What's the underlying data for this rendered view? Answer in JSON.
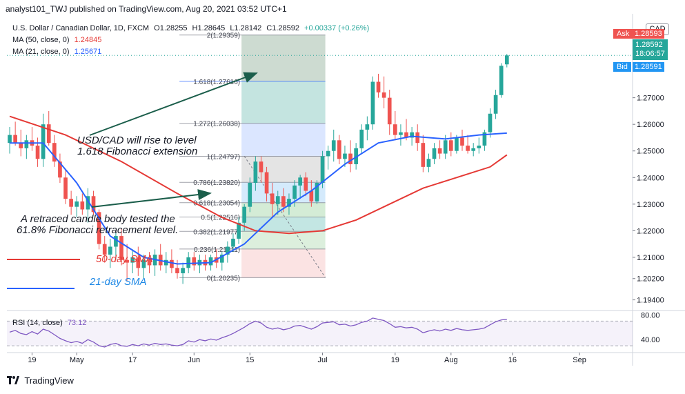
{
  "publisher_line": "analyst101_TWJ published on TradingView.com, Aug 20, 2021 03:52 UTC+1",
  "legend": {
    "symbol": "U.S. Dollar / Canadian Dollar, 1D, FXCM",
    "o": "O1.28255",
    "h": "H1.28645",
    "l": "L1.28142",
    "c": "C1.28592",
    "chg": "+0.00337 (+0.26%)",
    "ma50_label": "MA (50, close, 0)",
    "ma50_value": "1.24845",
    "ma21_label": "MA (21, close, 0)",
    "ma21_value": "1.25671",
    "rsi_label": "RSI (14, close)",
    "rsi_value": "73.12"
  },
  "currency_badge": "CAD",
  "ask": {
    "label": "Ask",
    "value": "1.28593"
  },
  "last": {
    "value": "1.28592",
    "countdown": "18:06:57"
  },
  "bid": {
    "label": "Bid",
    "value": "1.28591"
  },
  "footer_brand": "TradingView",
  "colors": {
    "up": "#26a69a",
    "down": "#ef5350",
    "ma50": "#e53935",
    "ma21": "#2962ff",
    "rsi": "#7e57c2",
    "arrow": "#1b5e4b",
    "fib_line": "#2962ff",
    "ask": "#ef5350",
    "bid": "#2196f3"
  },
  "chart_data": {
    "type": "candlestick",
    "ylim": [
      1.19,
      1.3
    ],
    "y_ticks": [
      1.194,
      1.202,
      1.21,
      1.22,
      1.23,
      1.24,
      1.25,
      1.26,
      1.27
    ],
    "y_tick_labels": [
      "1.19400",
      "1.20200",
      "1.21000",
      "1.22000",
      "1.23000",
      "1.24000",
      "1.25000",
      "1.26000",
      "1.27000"
    ],
    "x_ticks": [
      {
        "label": "19",
        "bar": 4
      },
      {
        "label": "May",
        "bar": 12
      },
      {
        "label": "17",
        "bar": 22
      },
      {
        "label": "Jun",
        "bar": 33
      },
      {
        "label": "15",
        "bar": 43
      },
      {
        "label": "Jul",
        "bar": 56
      },
      {
        "label": "19",
        "bar": 69
      },
      {
        "label": "Aug",
        "bar": 79
      },
      {
        "label": "16",
        "bar": 90
      },
      {
        "label": "Sep",
        "bar": 102
      }
    ],
    "n_slots": 112,
    "candles": [
      {
        "o": 1.253,
        "h": 1.259,
        "l": 1.249,
        "c": 1.256
      },
      {
        "o": 1.256,
        "h": 1.261,
        "l": 1.252,
        "c": 1.253
      },
      {
        "o": 1.253,
        "h": 1.258,
        "l": 1.248,
        "c": 1.251
      },
      {
        "o": 1.251,
        "h": 1.256,
        "l": 1.247,
        "c": 1.254
      },
      {
        "o": 1.254,
        "h": 1.259,
        "l": 1.25,
        "c": 1.252
      },
      {
        "o": 1.252,
        "h": 1.255,
        "l": 1.244,
        "c": 1.247
      },
      {
        "o": 1.247,
        "h": 1.264,
        "l": 1.244,
        "c": 1.26
      },
      {
        "o": 1.26,
        "h": 1.265,
        "l": 1.252,
        "c": 1.253
      },
      {
        "o": 1.253,
        "h": 1.256,
        "l": 1.244,
        "c": 1.246
      },
      {
        "o": 1.246,
        "h": 1.249,
        "l": 1.238,
        "c": 1.24
      },
      {
        "o": 1.24,
        "h": 1.243,
        "l": 1.23,
        "c": 1.232
      },
      {
        "o": 1.232,
        "h": 1.235,
        "l": 1.226,
        "c": 1.229
      },
      {
        "o": 1.229,
        "h": 1.233,
        "l": 1.225,
        "c": 1.231
      },
      {
        "o": 1.231,
        "h": 1.234,
        "l": 1.226,
        "c": 1.228
      },
      {
        "o": 1.228,
        "h": 1.236,
        "l": 1.223,
        "c": 1.233
      },
      {
        "o": 1.233,
        "h": 1.235,
        "l": 1.226,
        "c": 1.227
      },
      {
        "o": 1.227,
        "h": 1.228,
        "l": 1.213,
        "c": 1.215
      },
      {
        "o": 1.215,
        "h": 1.218,
        "l": 1.208,
        "c": 1.211
      },
      {
        "o": 1.211,
        "h": 1.217,
        "l": 1.206,
        "c": 1.214
      },
      {
        "o": 1.214,
        "h": 1.22,
        "l": 1.209,
        "c": 1.218
      },
      {
        "o": 1.218,
        "h": 1.221,
        "l": 1.207,
        "c": 1.209
      },
      {
        "o": 1.209,
        "h": 1.215,
        "l": 1.201,
        "c": 1.208
      },
      {
        "o": 1.208,
        "h": 1.213,
        "l": 1.204,
        "c": 1.21
      },
      {
        "o": 1.21,
        "h": 1.214,
        "l": 1.203,
        "c": 1.206
      },
      {
        "o": 1.206,
        "h": 1.211,
        "l": 1.202,
        "c": 1.209
      },
      {
        "o": 1.209,
        "h": 1.212,
        "l": 1.204,
        "c": 1.207
      },
      {
        "o": 1.207,
        "h": 1.213,
        "l": 1.203,
        "c": 1.211
      },
      {
        "o": 1.211,
        "h": 1.215,
        "l": 1.205,
        "c": 1.207
      },
      {
        "o": 1.207,
        "h": 1.212,
        "l": 1.204,
        "c": 1.209
      },
      {
        "o": 1.209,
        "h": 1.213,
        "l": 1.204,
        "c": 1.206
      },
      {
        "o": 1.206,
        "h": 1.209,
        "l": 1.202,
        "c": 1.204
      },
      {
        "o": 1.204,
        "h": 1.208,
        "l": 1.2,
        "c": 1.206
      },
      {
        "o": 1.206,
        "h": 1.212,
        "l": 1.204,
        "c": 1.21
      },
      {
        "o": 1.21,
        "h": 1.212,
        "l": 1.205,
        "c": 1.207
      },
      {
        "o": 1.207,
        "h": 1.211,
        "l": 1.204,
        "c": 1.209
      },
      {
        "o": 1.209,
        "h": 1.211,
        "l": 1.205,
        "c": 1.207
      },
      {
        "o": 1.207,
        "h": 1.211,
        "l": 1.205,
        "c": 1.21
      },
      {
        "o": 1.21,
        "h": 1.213,
        "l": 1.206,
        "c": 1.208
      },
      {
        "o": 1.208,
        "h": 1.212,
        "l": 1.205,
        "c": 1.211
      },
      {
        "o": 1.211,
        "h": 1.216,
        "l": 1.208,
        "c": 1.214
      },
      {
        "o": 1.214,
        "h": 1.219,
        "l": 1.212,
        "c": 1.217
      },
      {
        "o": 1.217,
        "h": 1.225,
        "l": 1.215,
        "c": 1.223
      },
      {
        "o": 1.223,
        "h": 1.23,
        "l": 1.22,
        "c": 1.229
      },
      {
        "o": 1.229,
        "h": 1.24,
        "l": 1.227,
        "c": 1.238
      },
      {
        "o": 1.238,
        "h": 1.248,
        "l": 1.235,
        "c": 1.246
      },
      {
        "o": 1.246,
        "h": 1.248,
        "l": 1.238,
        "c": 1.242
      },
      {
        "o": 1.242,
        "h": 1.244,
        "l": 1.231,
        "c": 1.234
      },
      {
        "o": 1.234,
        "h": 1.238,
        "l": 1.225,
        "c": 1.23
      },
      {
        "o": 1.23,
        "h": 1.235,
        "l": 1.226,
        "c": 1.233
      },
      {
        "o": 1.233,
        "h": 1.236,
        "l": 1.227,
        "c": 1.229
      },
      {
        "o": 1.229,
        "h": 1.234,
        "l": 1.226,
        "c": 1.232
      },
      {
        "o": 1.232,
        "h": 1.239,
        "l": 1.229,
        "c": 1.237
      },
      {
        "o": 1.237,
        "h": 1.241,
        "l": 1.232,
        "c": 1.24
      },
      {
        "o": 1.24,
        "h": 1.242,
        "l": 1.233,
        "c": 1.235
      },
      {
        "o": 1.235,
        "h": 1.239,
        "l": 1.229,
        "c": 1.231
      },
      {
        "o": 1.231,
        "h": 1.239,
        "l": 1.23,
        "c": 1.238
      },
      {
        "o": 1.238,
        "h": 1.25,
        "l": 1.236,
        "c": 1.248
      },
      {
        "o": 1.248,
        "h": 1.252,
        "l": 1.243,
        "c": 1.25
      },
      {
        "o": 1.25,
        "h": 1.258,
        "l": 1.246,
        "c": 1.254
      },
      {
        "o": 1.254,
        "h": 1.256,
        "l": 1.245,
        "c": 1.247
      },
      {
        "o": 1.247,
        "h": 1.252,
        "l": 1.244,
        "c": 1.249
      },
      {
        "o": 1.249,
        "h": 1.254,
        "l": 1.242,
        "c": 1.245
      },
      {
        "o": 1.245,
        "h": 1.253,
        "l": 1.243,
        "c": 1.251
      },
      {
        "o": 1.251,
        "h": 1.26,
        "l": 1.249,
        "c": 1.258
      },
      {
        "o": 1.258,
        "h": 1.263,
        "l": 1.254,
        "c": 1.26
      },
      {
        "o": 1.26,
        "h": 1.278,
        "l": 1.258,
        "c": 1.276
      },
      {
        "o": 1.276,
        "h": 1.279,
        "l": 1.27,
        "c": 1.272
      },
      {
        "o": 1.272,
        "h": 1.278,
        "l": 1.266,
        "c": 1.27
      },
      {
        "o": 1.27,
        "h": 1.273,
        "l": 1.256,
        "c": 1.26
      },
      {
        "o": 1.26,
        "h": 1.265,
        "l": 1.254,
        "c": 1.256
      },
      {
        "o": 1.256,
        "h": 1.26,
        "l": 1.252,
        "c": 1.257
      },
      {
        "o": 1.257,
        "h": 1.262,
        "l": 1.254,
        "c": 1.255
      },
      {
        "o": 1.255,
        "h": 1.259,
        "l": 1.252,
        "c": 1.257
      },
      {
        "o": 1.257,
        "h": 1.26,
        "l": 1.25,
        "c": 1.253
      },
      {
        "o": 1.253,
        "h": 1.256,
        "l": 1.242,
        "c": 1.244
      },
      {
        "o": 1.244,
        "h": 1.249,
        "l": 1.242,
        "c": 1.247
      },
      {
        "o": 1.247,
        "h": 1.253,
        "l": 1.245,
        "c": 1.251
      },
      {
        "o": 1.251,
        "h": 1.254,
        "l": 1.247,
        "c": 1.249
      },
      {
        "o": 1.249,
        "h": 1.256,
        "l": 1.247,
        "c": 1.254
      },
      {
        "o": 1.254,
        "h": 1.257,
        "l": 1.248,
        "c": 1.25
      },
      {
        "o": 1.25,
        "h": 1.256,
        "l": 1.249,
        "c": 1.255
      },
      {
        "o": 1.255,
        "h": 1.258,
        "l": 1.25,
        "c": 1.252
      },
      {
        "o": 1.252,
        "h": 1.256,
        "l": 1.249,
        "c": 1.25
      },
      {
        "o": 1.25,
        "h": 1.253,
        "l": 1.248,
        "c": 1.251
      },
      {
        "o": 1.251,
        "h": 1.255,
        "l": 1.249,
        "c": 1.252
      },
      {
        "o": 1.252,
        "h": 1.258,
        "l": 1.25,
        "c": 1.257
      },
      {
        "o": 1.257,
        "h": 1.266,
        "l": 1.255,
        "c": 1.264
      },
      {
        "o": 1.264,
        "h": 1.273,
        "l": 1.262,
        "c": 1.271
      },
      {
        "o": 1.271,
        "h": 1.283,
        "l": 1.27,
        "c": 1.282
      },
      {
        "o": 1.28255,
        "h": 1.28645,
        "l": 1.28142,
        "c": 1.28592
      }
    ],
    "ma50": [
      [
        0,
        1.263
      ],
      [
        10,
        1.256
      ],
      [
        20,
        1.246
      ],
      [
        30,
        1.234
      ],
      [
        38,
        1.225
      ],
      [
        44,
        1.22
      ],
      [
        50,
        1.219
      ],
      [
        56,
        1.22
      ],
      [
        62,
        1.224
      ],
      [
        68,
        1.23
      ],
      [
        74,
        1.236
      ],
      [
        80,
        1.24
      ],
      [
        86,
        1.244
      ],
      [
        89,
        1.2485
      ]
    ],
    "ma21": [
      [
        0,
        1.253
      ],
      [
        6,
        1.253
      ],
      [
        12,
        1.238
      ],
      [
        18,
        1.218
      ],
      [
        24,
        1.21
      ],
      [
        30,
        1.2075
      ],
      [
        36,
        1.208
      ],
      [
        42,
        1.215
      ],
      [
        48,
        1.227
      ],
      [
        54,
        1.235
      ],
      [
        60,
        1.245
      ],
      [
        66,
        1.253
      ],
      [
        72,
        1.2555
      ],
      [
        78,
        1.2545
      ],
      [
        84,
        1.256
      ],
      [
        89,
        1.2567
      ]
    ],
    "fibonacci": {
      "x_from_bar": 42,
      "x_to_bar": 56,
      "levels": [
        {
          "ratio": "2",
          "value": 1.29359,
          "label": "2(1.29359)"
        },
        {
          "ratio": "1.618",
          "value": 1.27616,
          "label": "1.618(1.27616)"
        },
        {
          "ratio": "1.272",
          "value": 1.26038,
          "label": "1.272(1.26038)"
        },
        {
          "ratio": "1",
          "value": 1.24797,
          "label": "1(1.24797)"
        },
        {
          "ratio": "0.786",
          "value": 1.2382,
          "label": "0.786(1.23820)"
        },
        {
          "ratio": "0.618",
          "value": 1.23054,
          "label": "0.618(1.23054)"
        },
        {
          "ratio": "0.5",
          "value": 1.22516,
          "label": "0.5(1.22516)"
        },
        {
          "ratio": "0.382",
          "value": 1.21977,
          "label": "0.382(1.21977)"
        },
        {
          "ratio": "0.236",
          "value": 1.21311,
          "label": "0.236(1.21311)"
        },
        {
          "ratio": "0",
          "value": 1.20235,
          "label": "0(1.20235)"
        }
      ]
    },
    "annotations": [
      {
        "text": "USD/CAD will rise to level"
      },
      {
        "text": "1.618 Fibonacci extension"
      },
      {
        "text": "A  retraced candle body  tested the"
      },
      {
        "text": "61.8% Fibonacci retracement level."
      },
      {
        "text": "50-day SMA"
      },
      {
        "text": "21-day SMA"
      }
    ],
    "rsi": {
      "ylim": [
        20,
        85
      ],
      "levels": [
        70,
        30
      ],
      "ticks": [
        {
          "value": 80,
          "label": "80.00"
        },
        {
          "value": 40,
          "label": "40.00"
        }
      ],
      "values": [
        52,
        55,
        50,
        48,
        53,
        49,
        57,
        54,
        48,
        42,
        38,
        35,
        37,
        34,
        40,
        36,
        30,
        28,
        32,
        34,
        30,
        29,
        32,
        30,
        33,
        31,
        34,
        32,
        33,
        31,
        30,
        32,
        38,
        36,
        40,
        38,
        41,
        39,
        43,
        46,
        50,
        55,
        60,
        66,
        70,
        67,
        60,
        57,
        59,
        56,
        58,
        62,
        63,
        60,
        57,
        61,
        67,
        68,
        69,
        64,
        65,
        62,
        64,
        68,
        70,
        75,
        73,
        71,
        66,
        60,
        61,
        59,
        60,
        57,
        51,
        54,
        56,
        54,
        57,
        55,
        58,
        56,
        55,
        56,
        57,
        59,
        64,
        69,
        72,
        73
      ]
    }
  }
}
